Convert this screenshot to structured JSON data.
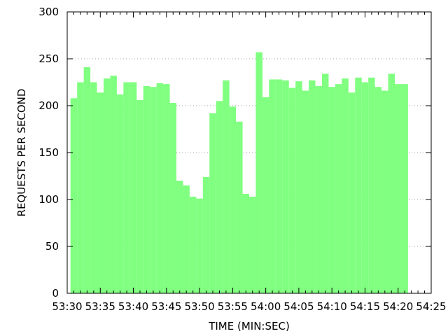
{
  "chart_data": {
    "type": "bar",
    "title": "",
    "xlabel": "TIME (MIN:SEC)",
    "ylabel": "REQUESTS PER SECOND",
    "grid": true,
    "legend": null,
    "ylim": [
      0,
      300
    ],
    "xlim": [
      "53:30",
      "54:25"
    ],
    "x_ticks": [
      "53:30",
      "53:35",
      "53:40",
      "53:45",
      "53:50",
      "53:55",
      "54:00",
      "54:05",
      "54:10",
      "54:15",
      "54:20",
      "54:25"
    ],
    "y_ticks": [
      0,
      50,
      100,
      150,
      200,
      250,
      300
    ],
    "bar_width_seconds": 1,
    "categories": [
      "53:31",
      "53:32",
      "53:33",
      "53:34",
      "53:35",
      "53:36",
      "53:37",
      "53:38",
      "53:39",
      "53:40",
      "53:41",
      "53:42",
      "53:43",
      "53:44",
      "53:45",
      "53:46",
      "53:47",
      "53:48",
      "53:49",
      "53:50",
      "53:51",
      "53:52",
      "53:53",
      "53:54",
      "53:55",
      "53:56",
      "53:57",
      "53:58",
      "53:59",
      "54:00",
      "54:01",
      "54:02",
      "54:03",
      "54:04",
      "54:05",
      "54:06",
      "54:07",
      "54:08",
      "54:09",
      "54:10",
      "54:11",
      "54:12",
      "54:13",
      "54:14",
      "54:15",
      "54:16",
      "54:17",
      "54:18",
      "54:19",
      "54:20",
      "54:21"
    ],
    "values": [
      208,
      225,
      241,
      225,
      214,
      229,
      232,
      212,
      225,
      225,
      206,
      221,
      220,
      224,
      223,
      203,
      120,
      115,
      103,
      101,
      124,
      192,
      205,
      227,
      199,
      183,
      106,
      103,
      257,
      209,
      228,
      228,
      227,
      219,
      226,
      216,
      227,
      221,
      234,
      220,
      223,
      229,
      214,
      230,
      225,
      230,
      220,
      216,
      234,
      223,
      223
    ],
    "bar_color": "#80ff80",
    "grid_color": "#a0a0a0"
  }
}
